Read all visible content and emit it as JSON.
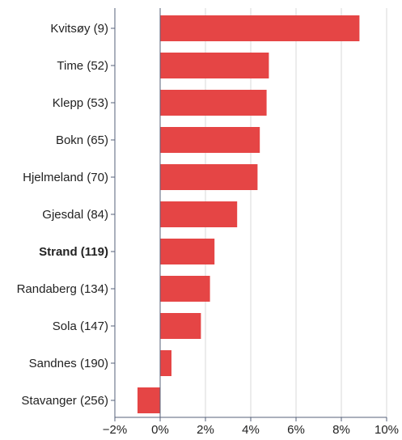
{
  "chart_data": {
    "type": "bar",
    "orientation": "horizontal",
    "categories": [
      "Kvitsøy (9)",
      "Time (52)",
      "Klepp (53)",
      "Bokn (65)",
      "Hjelmeland (70)",
      "Gjesdal (84)",
      "Strand (119)",
      "Randaberg (134)",
      "Sola (147)",
      "Sandnes (190)",
      "Stavanger (256)"
    ],
    "values": [
      8.8,
      4.8,
      4.7,
      4.4,
      4.3,
      3.4,
      2.4,
      2.2,
      1.8,
      0.5,
      -1.0
    ],
    "highlighted_category": "Strand (119)",
    "x_ticks": [
      -2,
      0,
      2,
      4,
      6,
      8,
      10
    ],
    "x_tick_labels": [
      "−2%",
      "0%",
      "2%",
      "4%",
      "6%",
      "8%",
      "10%"
    ],
    "xlim": [
      -2,
      10
    ],
    "grid": true,
    "title": "",
    "xlabel": "",
    "ylabel": "",
    "colors": {
      "bar": "#e54545",
      "grid": "#d9d9d9",
      "axis": "#55607a",
      "label": "#222222"
    }
  }
}
